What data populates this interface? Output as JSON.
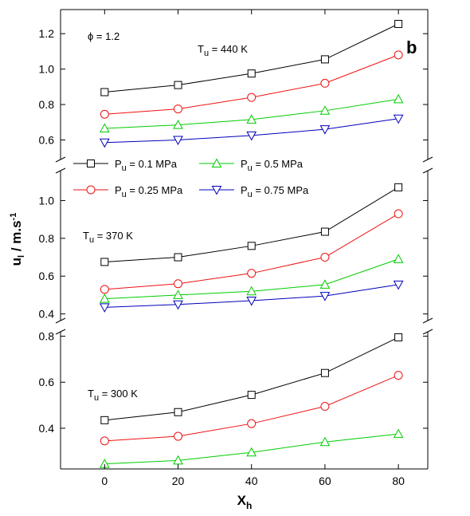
{
  "chart_data": {
    "type": "line",
    "corner_label": "b",
    "phi_label": "ϕ = 1.2",
    "xlabel": {
      "main": "X",
      "sub": "h"
    },
    "ylabel": {
      "main": "u",
      "sub": "l",
      "mid": " / m.s",
      "sup": "-1"
    },
    "x": [
      0,
      20,
      40,
      60,
      80
    ],
    "x_ticks": [
      "0",
      "20",
      "40",
      "60",
      "80"
    ],
    "xlim": [
      -12,
      88
    ],
    "legend": [
      {
        "pre": "P",
        "sub": "u",
        "post": " = 0.1 MPa",
        "color": "#000000",
        "marker": "square"
      },
      {
        "pre": "P",
        "sub": "u",
        "post": " = 0.5 MPa",
        "color": "#00cc00",
        "marker": "triangle-up"
      },
      {
        "pre": "P",
        "sub": "u",
        "post": " = 0.25 MPa",
        "color": "#ee1111",
        "marker": "circle"
      },
      {
        "pre": "P",
        "sub": "u",
        "post": " = 0.75 MPa",
        "color": "#0000bb",
        "marker": "triangle-down"
      }
    ],
    "panels": [
      {
        "label": {
          "pre": "T",
          "sub": "u",
          "post": " = 440 K"
        },
        "ylim": [
          0.53,
          1.3
        ],
        "y_ticks": [
          0.6,
          0.8,
          1.0,
          1.2
        ],
        "y_tick_labels": [
          "0.6",
          "0.8",
          "1.0",
          "1.2"
        ],
        "series": [
          {
            "legend_index": 0,
            "values": [
              0.87,
              0.91,
              0.975,
              1.055,
              1.255
            ]
          },
          {
            "legend_index": 2,
            "values": [
              0.745,
              0.775,
              0.84,
              0.92,
              1.08
            ]
          },
          {
            "legend_index": 1,
            "values": [
              0.665,
              0.685,
              0.715,
              0.765,
              0.83
            ]
          },
          {
            "legend_index": 3,
            "values": [
              0.585,
              0.6,
              0.625,
              0.66,
              0.72
            ]
          }
        ]
      },
      {
        "label": {
          "pre": "T",
          "sub": "u",
          "post": " = 370 K"
        },
        "ylim": [
          0.39,
          1.12
        ],
        "y_ticks": [
          0.4,
          0.6,
          0.8,
          1.0
        ],
        "y_tick_labels": [
          "0.4",
          "0.6",
          "0.8",
          "1.0"
        ],
        "series": [
          {
            "legend_index": 0,
            "values": [
              0.675,
              0.7,
              0.76,
              0.835,
              1.07
            ]
          },
          {
            "legend_index": 2,
            "values": [
              0.53,
              0.56,
              0.615,
              0.7,
              0.93
            ]
          },
          {
            "legend_index": 1,
            "values": [
              0.48,
              0.5,
              0.52,
              0.555,
              0.69
            ]
          },
          {
            "legend_index": 3,
            "values": [
              0.435,
              0.45,
              0.47,
              0.495,
              0.555
            ]
          }
        ]
      },
      {
        "label": {
          "pre": "T",
          "sub": "u",
          "post": " = 300 K"
        },
        "ylim": [
          0.23,
          0.84
        ],
        "y_ticks": [
          0.4,
          0.6,
          0.8
        ],
        "y_tick_labels": [
          "0.4",
          "0.6",
          "0.8"
        ],
        "series": [
          {
            "legend_index": 0,
            "values": [
              0.435,
              0.47,
              0.545,
              0.64,
              0.795
            ]
          },
          {
            "legend_index": 2,
            "values": [
              0.345,
              0.365,
              0.42,
              0.495,
              0.63
            ]
          },
          {
            "legend_index": 1,
            "values": [
              0.245,
              0.26,
              0.295,
              0.34,
              0.375
            ]
          }
        ]
      }
    ]
  }
}
